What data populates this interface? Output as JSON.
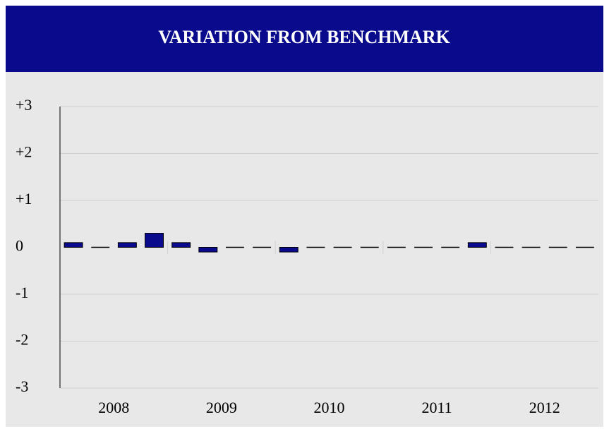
{
  "chart_data": {
    "type": "bar",
    "title": "VARIATION FROM BENCHMARK",
    "groups": [
      "2008",
      "2009",
      "2010",
      "2011",
      "2012"
    ],
    "values": [
      0.1,
      0,
      0.1,
      0.3,
      0.1,
      -0.1,
      0,
      0,
      -0.1,
      0,
      0,
      0,
      0,
      0,
      0,
      0.1,
      0,
      0,
      0,
      0
    ],
    "color": "#0a0a8c",
    "ylim": [
      -3,
      3
    ],
    "yticks": [
      {
        "value": 3,
        "label": "+3"
      },
      {
        "value": 2,
        "label": "+2"
      },
      {
        "value": 1,
        "label": "+1"
      },
      0,
      -1,
      -2,
      -3
    ],
    "grid": true
  }
}
